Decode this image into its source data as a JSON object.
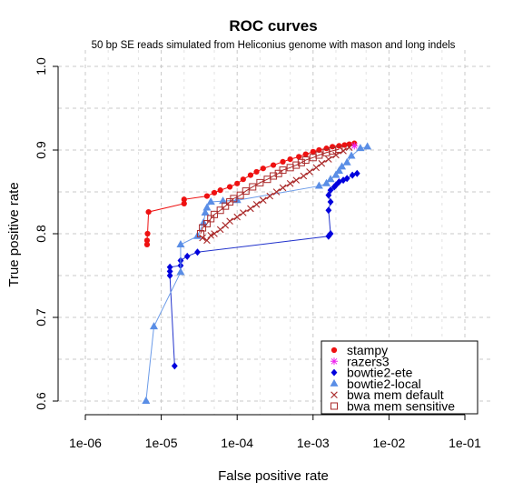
{
  "chart_data": {
    "type": "line",
    "title": "ROC curves",
    "subtitle": "50 bp SE reads simulated from Heliconius genome with mason and long indels",
    "xlabel": "False positive rate",
    "ylabel": "True positive rate",
    "x_scale": "log10",
    "xlim": [
      1e-06,
      0.1
    ],
    "ylim": [
      0.6,
      1.0
    ],
    "x_ticks": [
      1e-06,
      1e-05,
      0.0001,
      0.001,
      0.01,
      0.1
    ],
    "x_tick_labels": [
      "1e-06",
      "1e-05",
      "1e-04",
      "1e-03",
      "1e-02",
      "1e-01"
    ],
    "y_ticks": [
      0.6,
      0.7,
      0.8,
      0.9,
      1.0
    ],
    "y_tick_labels": [
      "0.6",
      "0.7",
      "0.8",
      "0.9",
      "1.0"
    ],
    "grid": true,
    "legend_position": "bottom-right",
    "series": [
      {
        "name": "stampy",
        "color": "#ee1111",
        "marker": "circle",
        "x": [
          6.5e-06,
          6.5e-06,
          6.6e-06,
          6.8e-06,
          2e-05,
          2e-05,
          4e-05,
          5e-05,
          6e-05,
          8e-05,
          0.0001,
          0.00012,
          0.00015,
          0.00018,
          0.00022,
          0.0003,
          0.0004,
          0.0005,
          0.00065,
          0.0008,
          0.001,
          0.0012,
          0.0015,
          0.0018,
          0.0022,
          0.0026,
          0.003,
          0.0035
        ],
        "y": [
          0.787,
          0.792,
          0.8,
          0.826,
          0.836,
          0.841,
          0.845,
          0.849,
          0.852,
          0.856,
          0.86,
          0.865,
          0.87,
          0.874,
          0.878,
          0.882,
          0.886,
          0.889,
          0.892,
          0.895,
          0.898,
          0.9,
          0.902,
          0.904,
          0.905,
          0.906,
          0.907,
          0.908
        ]
      },
      {
        "name": "razers3",
        "color": "#ee22ee",
        "marker": "asterisk",
        "x": [
          0.0035
        ],
        "y": [
          0.905
        ]
      },
      {
        "name": "bowtie2-ete",
        "color": "#0000dd",
        "marker": "diamond",
        "x": [
          1.5e-05,
          1.3e-05,
          1.3e-05,
          1.3e-05,
          1.8e-05,
          1.8e-05,
          2.2e-05,
          3e-05,
          0.0016,
          0.0017,
          0.0016,
          0.0017,
          0.0016,
          0.0017,
          0.0019,
          0.002,
          0.0022,
          0.0025,
          0.0028,
          0.0033,
          0.0038
        ],
        "y": [
          0.642,
          0.75,
          0.755,
          0.76,
          0.762,
          0.768,
          0.773,
          0.778,
          0.797,
          0.8,
          0.828,
          0.838,
          0.846,
          0.852,
          0.856,
          0.858,
          0.862,
          0.864,
          0.866,
          0.87,
          0.872
        ]
      },
      {
        "name": "bowtie2-local",
        "color": "#5a8ee6",
        "marker": "triangle",
        "x": [
          6.3e-06,
          8e-06,
          1.8e-05,
          1.8e-05,
          3e-05,
          3.6e-05,
          3.8e-05,
          4e-05,
          4.5e-05,
          6.5e-05,
          0.0001,
          0.0012,
          0.0015,
          0.0017,
          0.002,
          0.0022,
          0.0024,
          0.0028,
          0.0032,
          0.0042,
          0.0052
        ],
        "y": [
          0.6,
          0.689,
          0.754,
          0.787,
          0.797,
          0.813,
          0.825,
          0.831,
          0.838,
          0.839,
          0.84,
          0.857,
          0.86,
          0.865,
          0.87,
          0.875,
          0.88,
          0.885,
          0.893,
          0.902,
          0.904
        ]
      },
      {
        "name": "bwa mem default",
        "color": "#aa2a2a",
        "marker": "x",
        "x": [
          3.5e-05,
          4e-05,
          4.5e-05,
          5e-05,
          6e-05,
          7e-05,
          8e-05,
          0.0001,
          0.00012,
          0.00015,
          0.00018,
          0.00022,
          0.00027,
          0.00033,
          0.0004,
          0.0005,
          0.0006,
          0.00075,
          0.0009,
          0.0011,
          0.0013,
          0.0016,
          0.002,
          0.0025,
          0.003
        ],
        "y": [
          0.795,
          0.792,
          0.798,
          0.8,
          0.805,
          0.81,
          0.815,
          0.82,
          0.825,
          0.83,
          0.835,
          0.84,
          0.845,
          0.85,
          0.855,
          0.86,
          0.864,
          0.869,
          0.874,
          0.879,
          0.884,
          0.889,
          0.894,
          0.899,
          0.903
        ]
      },
      {
        "name": "bwa mem sensitive",
        "color": "#aa2a2a",
        "marker": "square",
        "x": [
          3.3e-05,
          3.5e-05,
          4e-05,
          4.5e-05,
          5e-05,
          6e-05,
          7e-05,
          8e-05,
          9e-05,
          0.00011,
          0.00013,
          0.00016,
          0.0002,
          0.00025,
          0.0003,
          0.00035,
          0.0004,
          0.0005,
          0.0006,
          0.0007,
          0.0008,
          0.001,
          0.0012,
          0.0015,
          0.0018,
          0.0022
        ],
        "y": [
          0.8,
          0.807,
          0.812,
          0.818,
          0.823,
          0.828,
          0.833,
          0.838,
          0.842,
          0.846,
          0.851,
          0.856,
          0.861,
          0.865,
          0.869,
          0.872,
          0.876,
          0.879,
          0.882,
          0.885,
          0.888,
          0.891,
          0.894,
          0.897,
          0.899,
          0.901
        ]
      }
    ]
  }
}
